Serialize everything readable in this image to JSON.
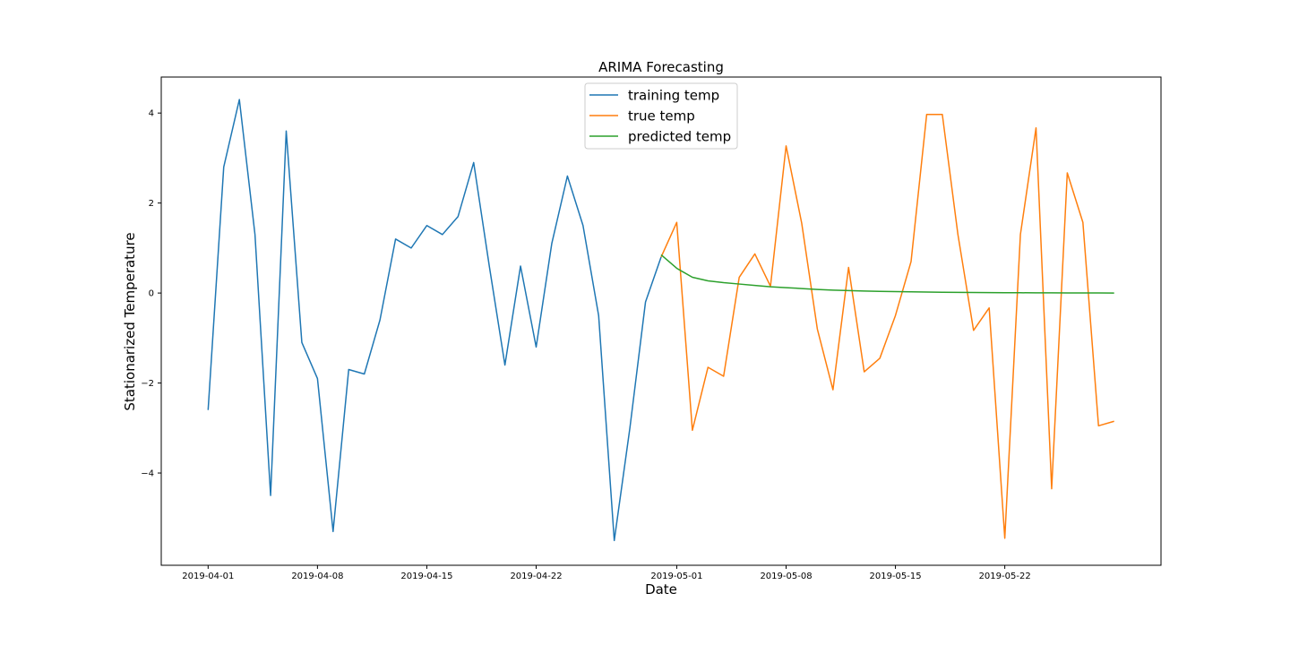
{
  "chart_data": {
    "type": "line",
    "title": "ARIMA Forecasting",
    "xlabel": "Date",
    "ylabel": "Stationarized Temperature",
    "x_ticks": [
      "2019-04-01",
      "2019-04-08",
      "2019-04-15",
      "2019-04-22",
      "2019-05-01",
      "2019-05-08",
      "2019-05-15",
      "2019-05-22"
    ],
    "y_ticks": [
      -4,
      -2,
      0,
      2,
      4
    ],
    "y_tick_labels": [
      "−4",
      "−2",
      "0",
      "2",
      "4"
    ],
    "xlim": [
      "2019-03-29",
      "2019-06-01"
    ],
    "ylim": [
      -6.05,
      4.8
    ],
    "grid": false,
    "legend_position": "top-center",
    "series": [
      {
        "name": "training temp",
        "color": "#1f77b4",
        "points": [
          [
            "2019-04-01",
            -2.6
          ],
          [
            "2019-04-02",
            2.8
          ],
          [
            "2019-04-03",
            4.3
          ],
          [
            "2019-04-04",
            1.3
          ],
          [
            "2019-04-05",
            -4.5
          ],
          [
            "2019-04-06",
            3.6
          ],
          [
            "2019-04-07",
            -1.1
          ],
          [
            "2019-04-08",
            -1.9
          ],
          [
            "2019-04-09",
            -5.3
          ],
          [
            "2019-04-10",
            -1.7
          ],
          [
            "2019-04-11",
            -1.8
          ],
          [
            "2019-04-12",
            -0.6
          ],
          [
            "2019-04-13",
            1.2
          ],
          [
            "2019-04-14",
            1.0
          ],
          [
            "2019-04-15",
            1.5
          ],
          [
            "2019-04-16",
            1.3
          ],
          [
            "2019-04-17",
            1.7
          ],
          [
            "2019-04-18",
            2.9
          ],
          [
            "2019-04-19",
            0.6
          ],
          [
            "2019-04-20",
            -1.6
          ],
          [
            "2019-04-21",
            0.6
          ],
          [
            "2019-04-22",
            -1.2
          ],
          [
            "2019-04-23",
            1.1
          ],
          [
            "2019-04-24",
            2.6
          ],
          [
            "2019-04-25",
            1.5
          ],
          [
            "2019-04-26",
            -0.5
          ],
          [
            "2019-04-27",
            -5.5
          ],
          [
            "2019-04-28",
            -3.0
          ],
          [
            "2019-04-29",
            -0.2
          ],
          [
            "2019-04-30",
            0.8
          ]
        ]
      },
      {
        "name": "true temp",
        "color": "#ff7f0e",
        "points": [
          [
            "2019-04-30",
            0.8
          ],
          [
            "2019-05-01",
            1.57
          ],
          [
            "2019-05-02",
            -3.05
          ],
          [
            "2019-05-03",
            -1.65
          ],
          [
            "2019-05-04",
            -1.85
          ],
          [
            "2019-05-05",
            0.35
          ],
          [
            "2019-05-06",
            0.87
          ],
          [
            "2019-05-07",
            0.15
          ],
          [
            "2019-05-08",
            3.27
          ],
          [
            "2019-05-09",
            1.55
          ],
          [
            "2019-05-10",
            -0.8
          ],
          [
            "2019-05-11",
            -2.15
          ],
          [
            "2019-05-12",
            0.57
          ],
          [
            "2019-05-13",
            -1.75
          ],
          [
            "2019-05-14",
            -1.45
          ],
          [
            "2019-05-15",
            -0.5
          ],
          [
            "2019-05-16",
            0.7
          ],
          [
            "2019-05-17",
            3.97
          ],
          [
            "2019-05-18",
            3.97
          ],
          [
            "2019-05-19",
            1.3
          ],
          [
            "2019-05-20",
            -0.83
          ],
          [
            "2019-05-21",
            -0.33
          ],
          [
            "2019-05-22",
            -5.45
          ],
          [
            "2019-05-23",
            1.3
          ],
          [
            "2019-05-24",
            3.67
          ],
          [
            "2019-05-25",
            -4.35
          ],
          [
            "2019-05-26",
            2.67
          ],
          [
            "2019-05-27",
            1.57
          ],
          [
            "2019-05-28",
            -2.95
          ],
          [
            "2019-05-29",
            -2.85
          ]
        ]
      },
      {
        "name": "predicted temp",
        "color": "#2ca02c",
        "points": [
          [
            "2019-04-30",
            0.85
          ],
          [
            "2019-05-01",
            0.55
          ],
          [
            "2019-05-02",
            0.35
          ],
          [
            "2019-05-03",
            0.27
          ],
          [
            "2019-05-04",
            0.23
          ],
          [
            "2019-05-05",
            0.2
          ],
          [
            "2019-05-06",
            0.17
          ],
          [
            "2019-05-07",
            0.14
          ],
          [
            "2019-05-08",
            0.12
          ],
          [
            "2019-05-09",
            0.1
          ],
          [
            "2019-05-10",
            0.08
          ],
          [
            "2019-05-11",
            0.065
          ],
          [
            "2019-05-12",
            0.055
          ],
          [
            "2019-05-13",
            0.045
          ],
          [
            "2019-05-14",
            0.038
          ],
          [
            "2019-05-15",
            0.032
          ],
          [
            "2019-05-16",
            0.027
          ],
          [
            "2019-05-17",
            0.022
          ],
          [
            "2019-05-18",
            0.018
          ],
          [
            "2019-05-19",
            0.015
          ],
          [
            "2019-05-20",
            0.012
          ],
          [
            "2019-05-21",
            0.01
          ],
          [
            "2019-05-22",
            0.008
          ],
          [
            "2019-05-23",
            0.006
          ],
          [
            "2019-05-24",
            0.005
          ],
          [
            "2019-05-25",
            0.004
          ],
          [
            "2019-05-26",
            0.003
          ],
          [
            "2019-05-27",
            0.002
          ],
          [
            "2019-05-28",
            0.001
          ],
          [
            "2019-05-29",
            0.0
          ]
        ]
      }
    ]
  }
}
